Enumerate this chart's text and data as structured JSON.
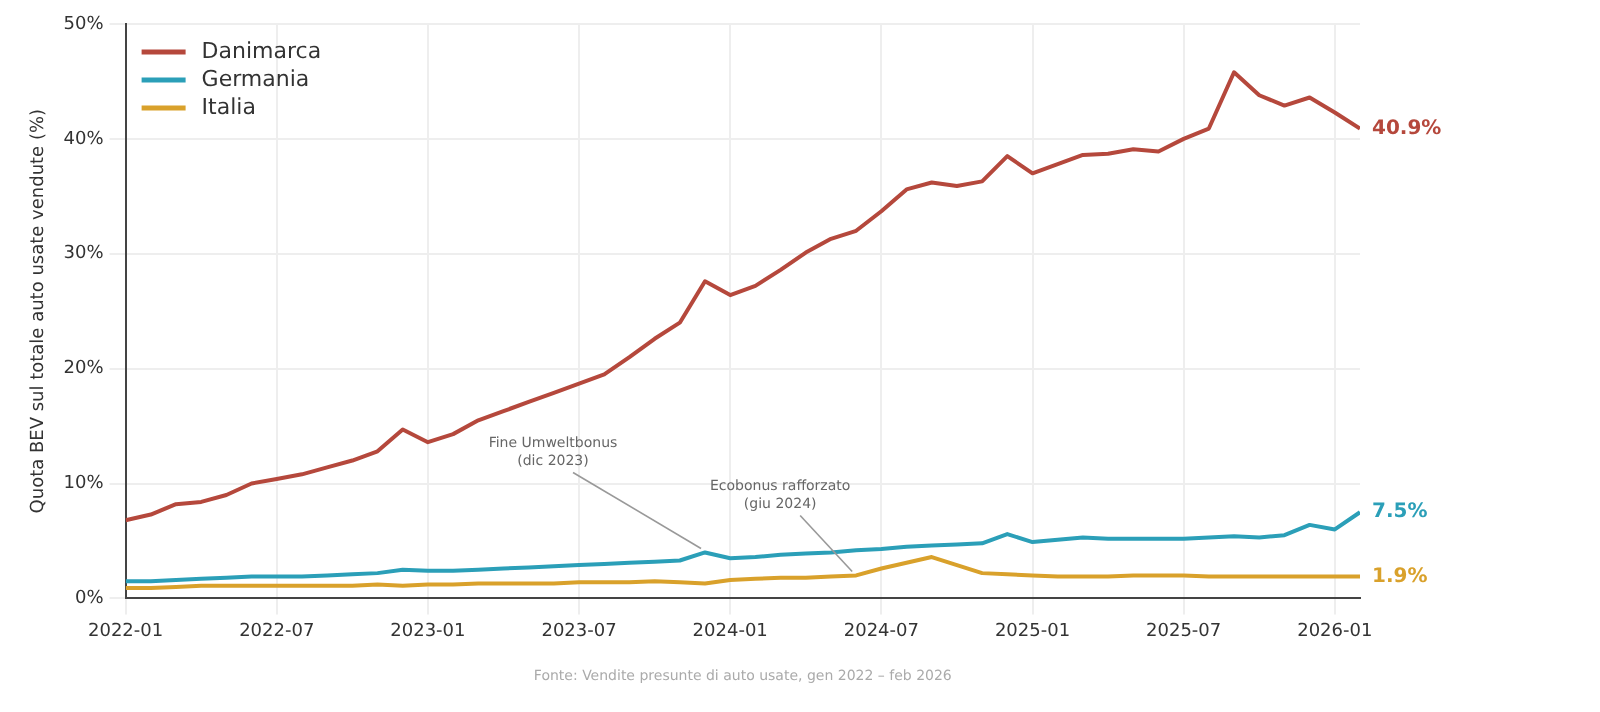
{
  "chart_data": {
    "type": "line",
    "ylabel": "Quota BEV sul totale auto usate vendute (%)",
    "x": [
      "2022-01",
      "2022-02",
      "2022-03",
      "2022-04",
      "2022-05",
      "2022-06",
      "2022-07",
      "2022-08",
      "2022-09",
      "2022-10",
      "2022-11",
      "2022-12",
      "2023-01",
      "2023-02",
      "2023-03",
      "2023-04",
      "2023-05",
      "2023-06",
      "2023-07",
      "2023-08",
      "2023-09",
      "2023-10",
      "2023-11",
      "2023-12",
      "2024-01",
      "2024-02",
      "2024-03",
      "2024-04",
      "2024-05",
      "2024-06",
      "2024-07",
      "2024-08",
      "2024-09",
      "2024-10",
      "2024-11",
      "2024-12",
      "2025-01",
      "2025-02",
      "2025-03",
      "2025-04",
      "2025-05",
      "2025-06",
      "2025-07",
      "2025-08",
      "2025-09",
      "2025-10",
      "2025-11",
      "2025-12",
      "2026-01",
      "2026-02"
    ],
    "series": [
      {
        "name": "Danimarca",
        "color": "#b5483c",
        "values": [
          6.8,
          7.3,
          8.2,
          8.4,
          9.0,
          10.0,
          10.4,
          10.8,
          11.4,
          12.0,
          12.8,
          14.7,
          13.6,
          14.3,
          15.5,
          16.3,
          17.1,
          17.9,
          18.7,
          19.5,
          21.0,
          22.6,
          24.0,
          27.6,
          26.4,
          27.2,
          28.6,
          30.1,
          31.3,
          32.0,
          33.7,
          35.6,
          36.2,
          35.9,
          36.3,
          38.5,
          37.0,
          37.8,
          38.6,
          38.7,
          39.1,
          38.9,
          40.0,
          40.9,
          45.8,
          43.8,
          42.9,
          43.6,
          42.3,
          40.9
        ],
        "value_labels": [
          null,
          null,
          null,
          null,
          null,
          null,
          null,
          null,
          null,
          null,
          null,
          null,
          null,
          null,
          null,
          null,
          null,
          null,
          null,
          null,
          null,
          null,
          null,
          null,
          null,
          null,
          null,
          null,
          null,
          null,
          null,
          null,
          null,
          null,
          null,
          null,
          null,
          null,
          null,
          null,
          null,
          null,
          null,
          null,
          null,
          null,
          null,
          null,
          null,
          "40.9%"
        ]
      },
      {
        "name": "Germania",
        "color": "#2b9fb8",
        "values": [
          1.5,
          1.5,
          1.6,
          1.7,
          1.8,
          1.9,
          1.9,
          1.9,
          2.0,
          2.1,
          2.2,
          2.5,
          2.4,
          2.4,
          2.5,
          2.6,
          2.7,
          2.8,
          2.9,
          3.0,
          3.1,
          3.2,
          3.3,
          4.0,
          3.5,
          3.6,
          3.8,
          3.9,
          4.0,
          4.2,
          4.3,
          4.5,
          4.6,
          4.7,
          4.8,
          5.6,
          4.9,
          5.1,
          5.3,
          5.2,
          5.2,
          5.2,
          5.2,
          5.3,
          5.4,
          5.3,
          5.5,
          6.4,
          6.0,
          7.5
        ],
        "value_labels": [
          null,
          null,
          null,
          null,
          null,
          null,
          null,
          null,
          null,
          null,
          null,
          null,
          null,
          null,
          null,
          null,
          null,
          null,
          null,
          null,
          null,
          null,
          null,
          null,
          null,
          null,
          null,
          null,
          null,
          null,
          null,
          null,
          null,
          null,
          null,
          null,
          null,
          null,
          null,
          null,
          null,
          null,
          null,
          null,
          null,
          null,
          null,
          null,
          null,
          "7.5%"
        ]
      },
      {
        "name": "Italia",
        "color": "#d9a12b",
        "values": [
          0.9,
          0.9,
          1.0,
          1.1,
          1.1,
          1.1,
          1.1,
          1.1,
          1.1,
          1.1,
          1.2,
          1.1,
          1.2,
          1.2,
          1.3,
          1.3,
          1.3,
          1.3,
          1.4,
          1.4,
          1.4,
          1.5,
          1.4,
          1.3,
          1.6,
          1.7,
          1.8,
          1.8,
          1.9,
          2.0,
          2.6,
          3.1,
          3.6,
          2.9,
          2.2,
          2.1,
          2.0,
          1.9,
          1.9,
          1.9,
          2.0,
          2.0,
          2.0,
          1.9,
          1.9,
          1.9,
          1.9,
          1.9,
          1.9,
          1.9
        ],
        "value_labels": [
          null,
          null,
          null,
          null,
          null,
          null,
          null,
          null,
          null,
          null,
          null,
          null,
          null,
          null,
          null,
          null,
          null,
          null,
          null,
          null,
          null,
          null,
          null,
          null,
          null,
          null,
          null,
          null,
          null,
          null,
          null,
          null,
          null,
          null,
          null,
          null,
          null,
          null,
          null,
          null,
          null,
          null,
          null,
          null,
          null,
          null,
          null,
          null,
          null,
          "1.9%"
        ]
      }
    ],
    "xlim": [
      "2022-01",
      "2026-02"
    ],
    "xticks": [
      "2022-01",
      "2022-07",
      "2023-01",
      "2023-07",
      "2024-01",
      "2024-07",
      "2025-01",
      "2025-07",
      "2026-01"
    ],
    "ylim": [
      0,
      50
    ],
    "yticks": [
      {
        "value": 0,
        "label": "0%"
      },
      {
        "value": 10,
        "label": "10%"
      },
      {
        "value": 20,
        "label": "20%"
      },
      {
        "value": 30,
        "label": "30%"
      },
      {
        "value": 40,
        "label": "40%"
      },
      {
        "value": 50,
        "label": "50%"
      }
    ],
    "grid": true,
    "legend": "top left",
    "marker": "none",
    "line_style": "solid",
    "annotations": [
      {
        "text": "Fine Umweltbonus\n(dic 2023)",
        "x": "2023-12",
        "y": 4.0
      },
      {
        "text": "Ecobonus rafforzato\n(giu 2024)",
        "x": "2024-06",
        "y": 2.0
      },
      "Fonte: Vendite presunte di auto usate, gen 2022 – feb 2026"
    ]
  }
}
